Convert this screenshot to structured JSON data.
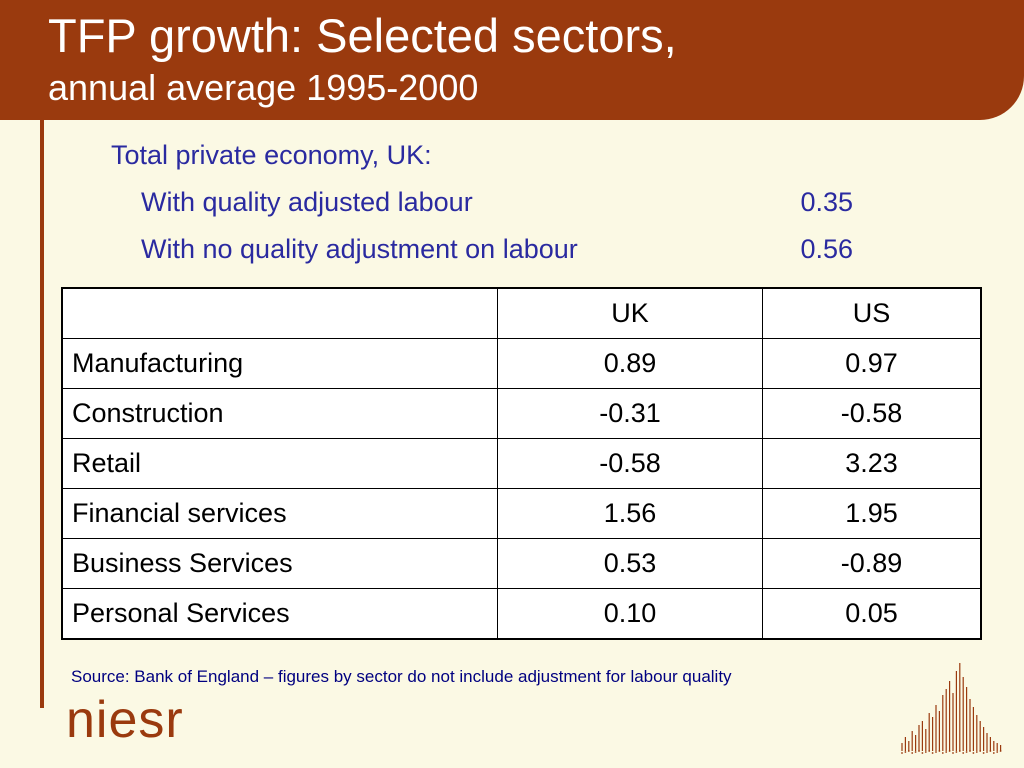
{
  "header": {
    "title": "TFP growth: Selected sectors,",
    "subtitle": "annual average 1995-2000"
  },
  "notes": {
    "heading": "Total private economy, UK:",
    "rows": [
      {
        "label": "With quality adjusted labour",
        "value": "0.35"
      },
      {
        "label": "With no quality adjustment on labour",
        "value": "0.56"
      }
    ]
  },
  "table": {
    "columns": [
      "",
      "UK",
      "US"
    ],
    "rows": [
      {
        "sector": "Manufacturing",
        "uk": "0.89",
        "us": "0.97"
      },
      {
        "sector": "Construction",
        "uk": "-0.31",
        "us": "-0.58"
      },
      {
        "sector": "Retail",
        "uk": "-0.58",
        "us": "3.23"
      },
      {
        "sector": "Financial services",
        "uk": "1.56",
        "us": "1.95"
      },
      {
        "sector": "Business Services",
        "uk": "0.53",
        "us": "-0.89"
      },
      {
        "sector": "Personal Services",
        "uk": "0.10",
        "us": "0.05"
      }
    ]
  },
  "source": "Source: Bank of England – figures by sector do not include adjustment for labour quality",
  "logo": {
    "text": "niesr",
    "color": "#9a3a0e"
  },
  "colors": {
    "banner": "#9a3a0e",
    "background": "#fbf9e4",
    "note_text": "#2a2aa0",
    "source_text": "#000080"
  }
}
